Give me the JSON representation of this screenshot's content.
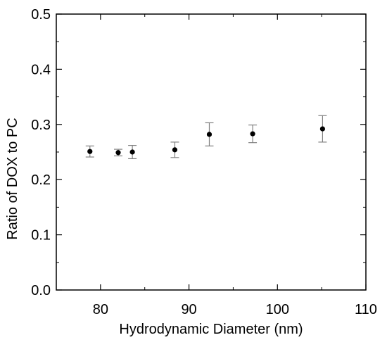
{
  "chart_data": {
    "type": "scatter",
    "title": "",
    "xlabel": "Hydrodynamic Diameter (nm)",
    "ylabel": "Ratio of DOX to PC",
    "xlim": [
      75,
      110
    ],
    "ylim": [
      0.0,
      0.5
    ],
    "xticks": [
      80,
      90,
      100,
      110
    ],
    "xtick_labels": [
      "80",
      "90",
      "100",
      "110"
    ],
    "yticks": [
      0.0,
      0.1,
      0.2,
      0.3,
      0.4,
      0.5
    ],
    "ytick_labels": [
      "0.0",
      "0.1",
      "0.2",
      "0.3",
      "0.4",
      "0.5"
    ],
    "x_minor_step": 5,
    "y_minor_step": 0.05,
    "grid": false,
    "legend": false,
    "marker_color": "#000000",
    "errorbar_color": "#808080",
    "series": [
      {
        "x": [
          78.8,
          82.0,
          83.6,
          88.4,
          92.3,
          97.2,
          105.1
        ],
        "y": [
          0.251,
          0.249,
          0.25,
          0.254,
          0.282,
          0.283,
          0.292
        ],
        "yerr": [
          0.01,
          0.006,
          0.012,
          0.014,
          0.021,
          0.016,
          0.024
        ]
      }
    ]
  }
}
